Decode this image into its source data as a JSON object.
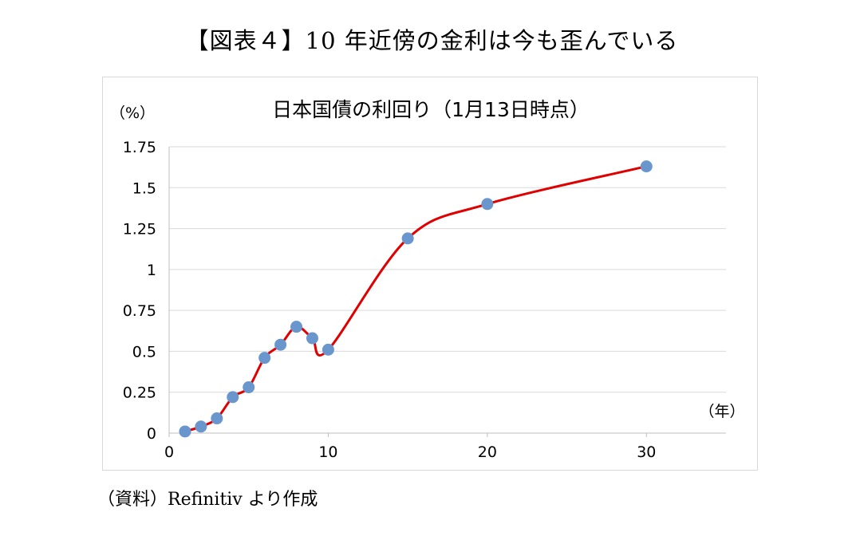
{
  "figure": {
    "heading": "【図表４】10 年近傍の金利は今も歪んでいる",
    "source_note": "（資料）Refinitiv より作成"
  },
  "colors": {
    "line": "#e00000",
    "marker": "#6996cc",
    "grid": "#d9d9d9",
    "axis": "#bfbfbf"
  },
  "chart_data": {
    "type": "scatter",
    "title": "日本国債の利回り（1月13日時点）",
    "ylabel": "（%）",
    "xlabel": "（年）",
    "xlim": [
      0,
      35
    ],
    "ylim": [
      0,
      1.75
    ],
    "xticks": [
      0,
      10,
      20,
      30
    ],
    "yticks": [
      0,
      0.25,
      0.5,
      0.75,
      1,
      1.25,
      1.5,
      1.75
    ],
    "ytick_labels": [
      "0",
      "0.25",
      "0.5",
      "0.75",
      "1",
      "1.25",
      "1.5",
      "1.75"
    ],
    "grid": true,
    "legend": "none",
    "series": [
      {
        "style": "markers + smoothed line",
        "x": [
          1,
          2,
          3,
          4,
          5,
          6,
          7,
          8,
          9,
          10,
          15,
          20,
          30
        ],
        "y": [
          0.01,
          0.04,
          0.09,
          0.22,
          0.28,
          0.46,
          0.54,
          0.65,
          0.58,
          0.51,
          1.19,
          1.4,
          1.63
        ]
      }
    ]
  }
}
